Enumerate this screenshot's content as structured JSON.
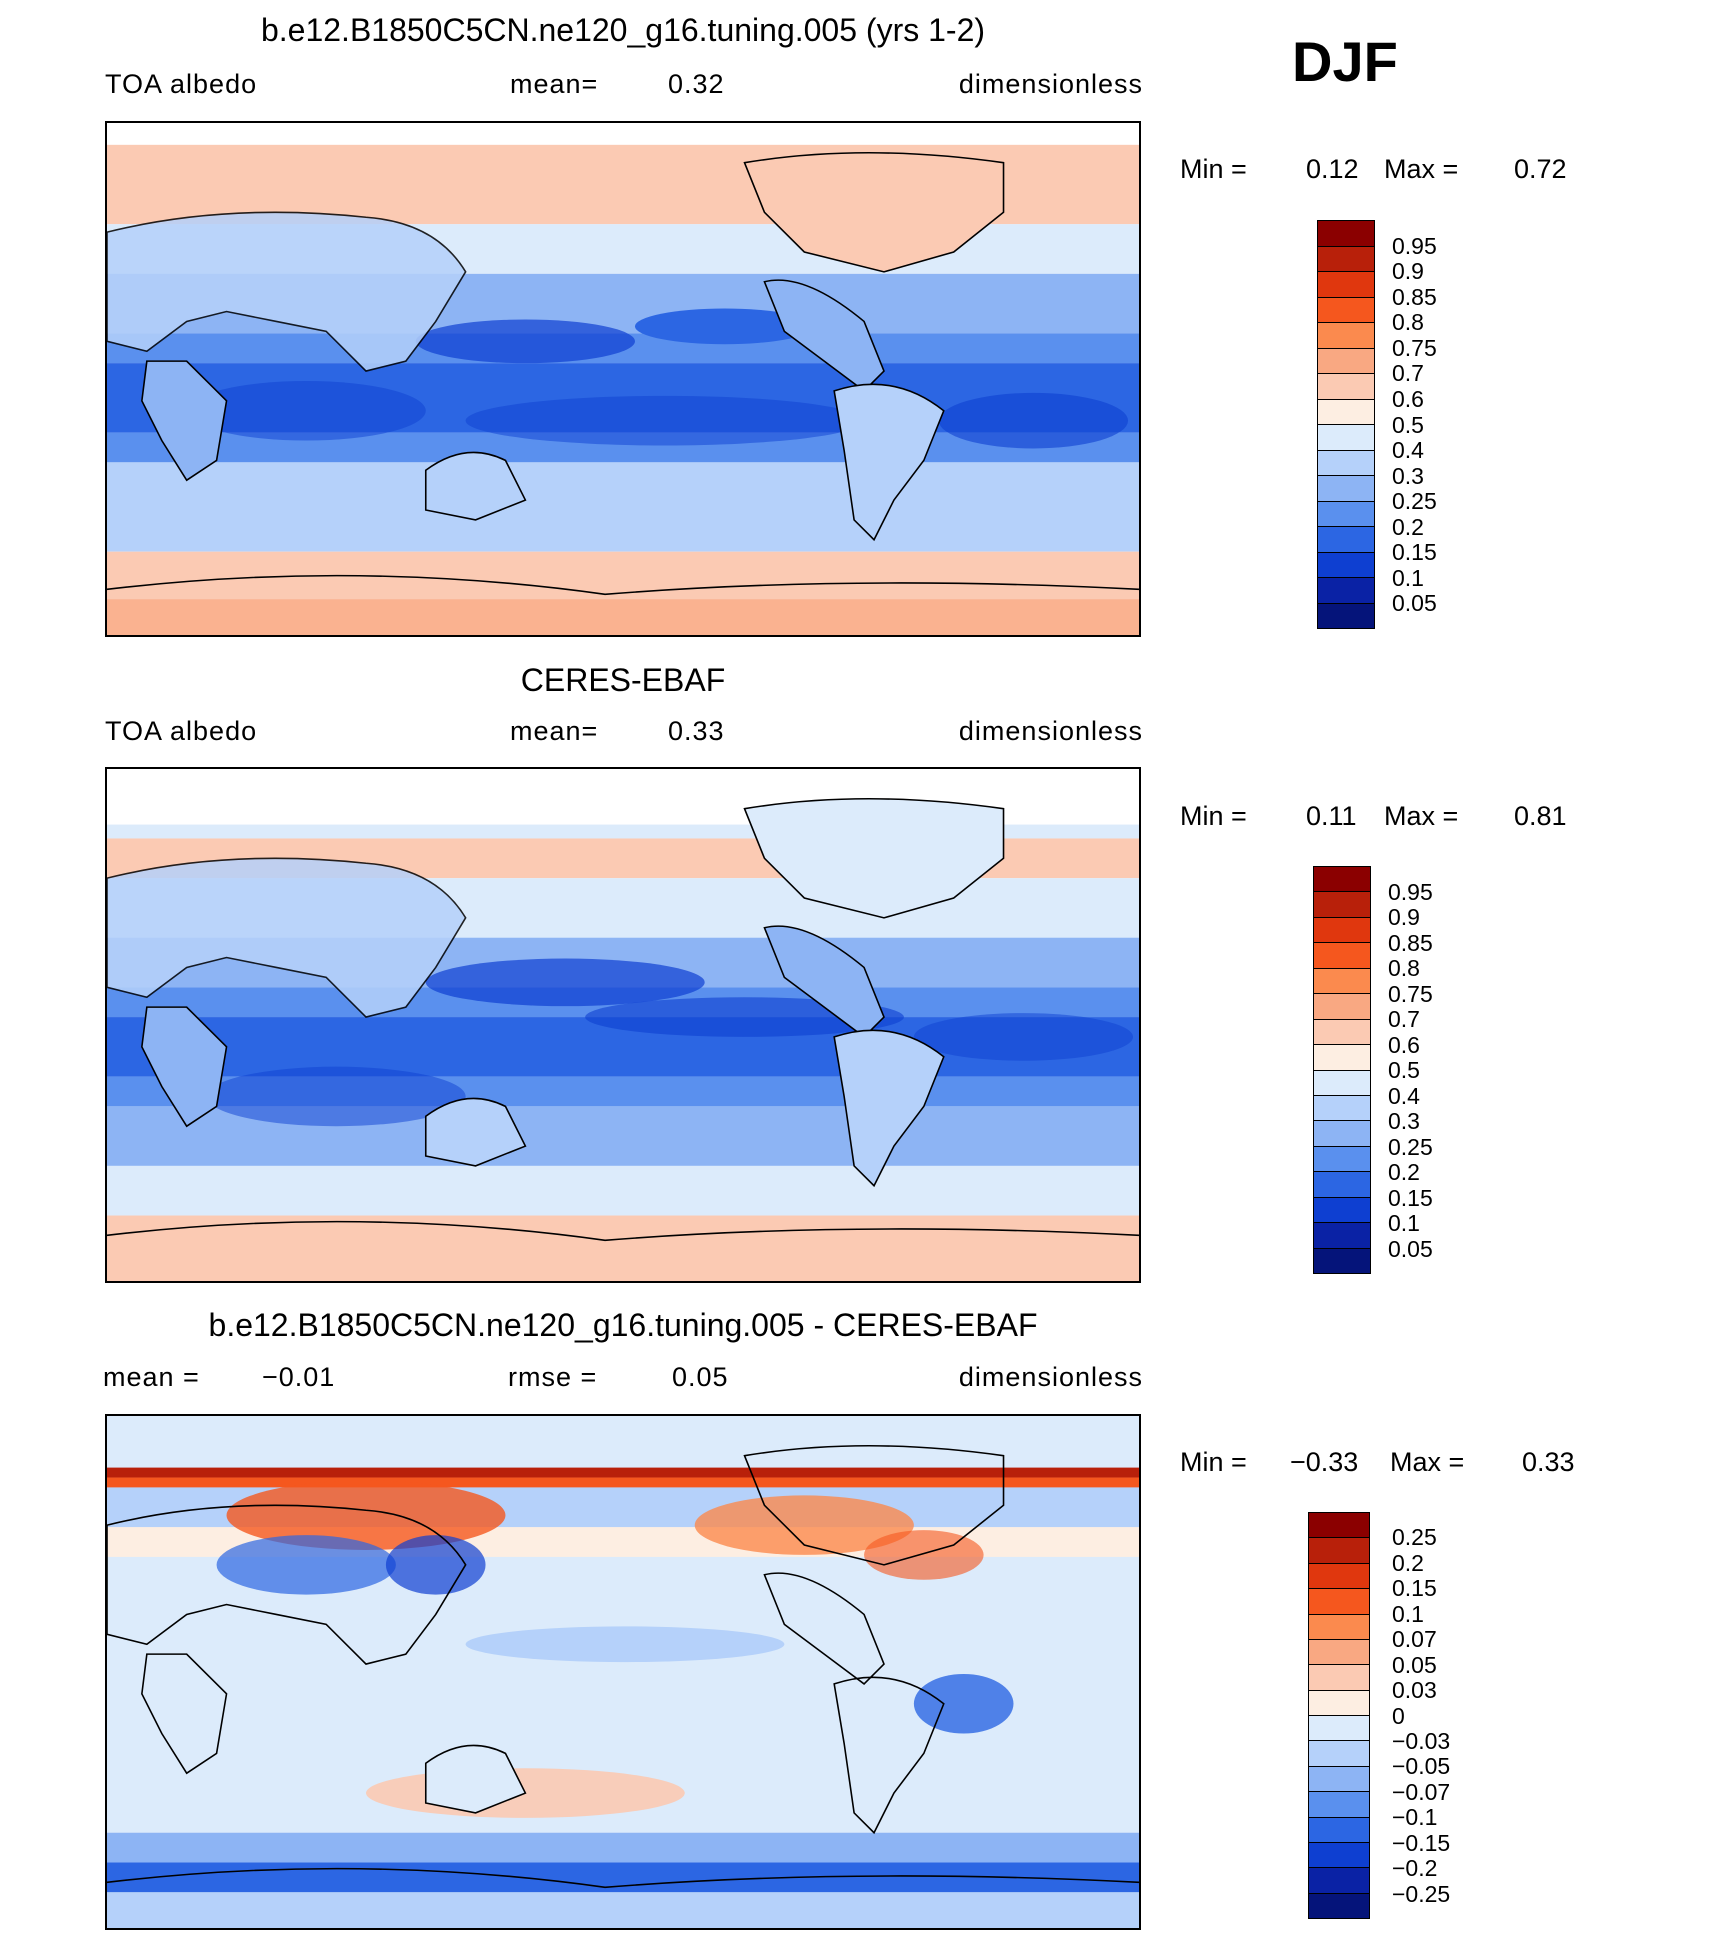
{
  "season": "DJF",
  "panels": [
    {
      "title": "b.e12.B1850C5CN.ne120_g16.tuning.005 (yrs 1-2)",
      "left_label": "TOA albedo",
      "mid_label": "mean=",
      "mid_value": "0.32",
      "right_label": "dimensionless",
      "min_label": "Min =",
      "min_value": "0.12",
      "max_label": "Max =",
      "max_value": "0.72",
      "scale": "abs"
    },
    {
      "title": "CERES-EBAF",
      "left_label": "TOA albedo",
      "mid_label": "mean=",
      "mid_value": "0.33",
      "right_label": "dimensionless",
      "min_label": "Min =",
      "min_value": "0.11",
      "max_label": "Max =",
      "max_value": "0.81",
      "scale": "abs"
    },
    {
      "title": "b.e12.B1850C5CN.ne120_g16.tuning.005 - CERES-EBAF",
      "left_label": "mean =",
      "left_value": "−0.01",
      "mid_label": "rmse =",
      "mid_value": "0.05",
      "right_label": "dimensionless",
      "min_label": "Min =",
      "min_value": "−0.33",
      "max_label": "Max =",
      "max_value": "0.33",
      "scale": "diff"
    }
  ],
  "colorbars": {
    "abs": {
      "levels": [
        "0.95",
        "0.9",
        "0.85",
        "0.8",
        "0.75",
        "0.7",
        "0.6",
        "0.5",
        "0.4",
        "0.3",
        "0.25",
        "0.2",
        "0.15",
        "0.1",
        "0.05"
      ],
      "colors": [
        "#8b0000",
        "#b8200a",
        "#e0370e",
        "#f5571e",
        "#fb8a4e",
        "#f9a882",
        "#fbcab3",
        "#fdeee2",
        "#dcebfb",
        "#b5d1fa",
        "#8db4f4",
        "#5a90ee",
        "#2c66e3",
        "#0e3fd1",
        "#0a22a5",
        "#05147a"
      ]
    },
    "diff": {
      "levels": [
        "0.25",
        "0.2",
        "0.15",
        "0.1",
        "0.07",
        "0.05",
        "0.03",
        "0",
        "−0.03",
        "−0.05",
        "−0.07",
        "−0.1",
        "−0.15",
        "−0.2",
        "−0.25"
      ],
      "colors": [
        "#8b0000",
        "#b8200a",
        "#e0370e",
        "#f5571e",
        "#fb8a4e",
        "#f9a882",
        "#fbcab3",
        "#fdeee2",
        "#dcebfb",
        "#b5d1fa",
        "#8db4f4",
        "#5a90ee",
        "#2c66e3",
        "#0e3fd1",
        "#0a22a5",
        "#05147a"
      ]
    }
  }
}
